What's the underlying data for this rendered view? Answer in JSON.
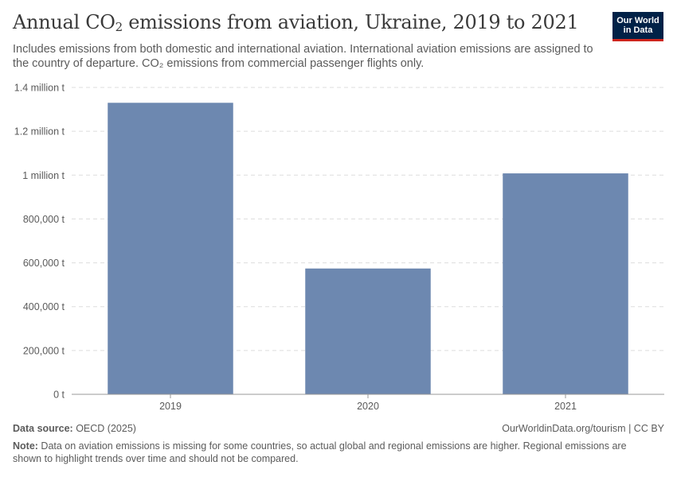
{
  "header": {
    "title_main": "Annual CO",
    "title_sub": "2",
    "title_rest": " emissions from aviation, Ukraine, 2019 to 2021",
    "subtitle": "Includes emissions from both domestic and international aviation. International aviation emissions are assigned to the country of departure. CO₂ emissions from commercial passenger flights only."
  },
  "logo": {
    "line1": "Our World",
    "line2": "in Data"
  },
  "chart_data": {
    "type": "bar",
    "title": "Annual CO₂ emissions from aviation, Ukraine, 2019 to 2021",
    "categories": [
      "2019",
      "2020",
      "2021"
    ],
    "values": [
      1330000,
      574000,
      1008000
    ],
    "ylim": [
      0,
      1400000
    ],
    "yticks": [
      0,
      200000,
      400000,
      600000,
      800000,
      1000000,
      1200000,
      1400000
    ],
    "ytick_labels": [
      "0 t",
      "200,000 t",
      "400,000 t",
      "600,000 t",
      "800,000 t",
      "1 million t",
      "1.2 million t",
      "1.4 million t"
    ],
    "xlabel": "",
    "ylabel": "",
    "grid": true,
    "bar_color": "#6d88b0"
  },
  "footer": {
    "source_label": "Data source:",
    "source_value": " OECD (2025)",
    "credit": "OurWorldinData.org/tourism | CC BY",
    "note_label": "Note:",
    "note_value": " Data on aviation emissions is missing for some countries, so actual global and regional emissions are higher. Regional emissions are shown to highlight trends over time and should not be compared."
  }
}
